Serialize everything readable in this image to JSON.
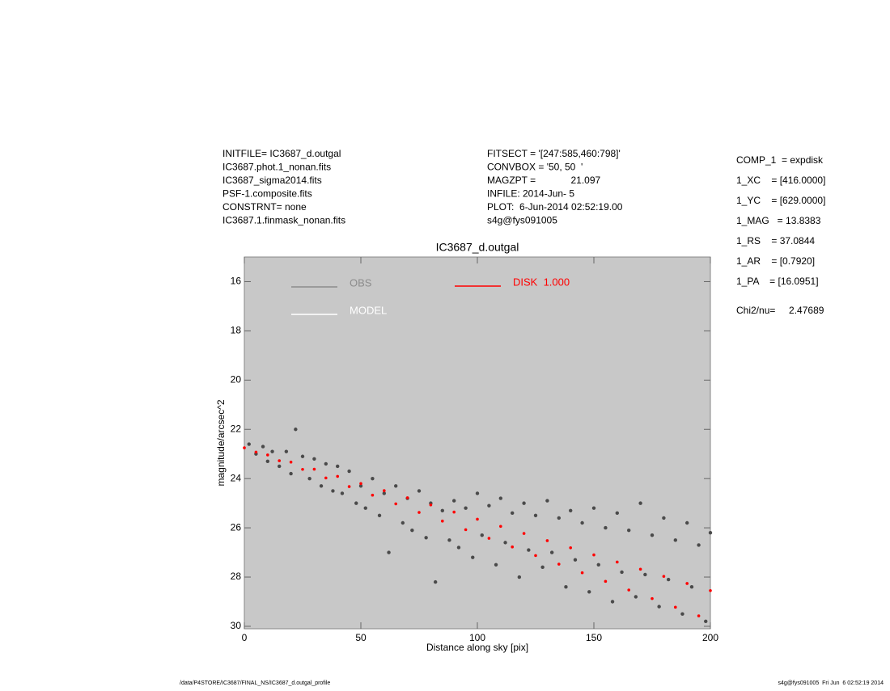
{
  "chart_data": {
    "type": "scatter",
    "title": "IC3687_d.outgal",
    "xlabel": "Distance along sky [pix]",
    "ylabel": "magnitude/arcsec^2",
    "xlim": [
      0,
      200
    ],
    "ylim": [
      30.1,
      15
    ],
    "xticks": [
      0,
      50,
      100,
      150,
      200
    ],
    "yticks": [
      16,
      18,
      20,
      22,
      24,
      26,
      28,
      30
    ],
    "background": "#c8c8c8",
    "header_left": [
      "INITFILE= IC3687_d.outgal",
      "IC3687.phot.1_nonan.fits",
      "IC3687_sigma2014.fits",
      "PSF-1.composite.fits",
      "CONSTRNT= none",
      "IC3687.1.finmask_nonan.fits"
    ],
    "header_middle": [
      "FITSECT = '[247:585,460:798]'",
      "CONVBOX = '50, 50  '",
      "MAGZPT =             21.097",
      "INFILE: 2014-Jun- 5",
      "PLOT:  6-Jun-2014 02:52:19.00",
      "s4g@fys091005"
    ],
    "header_right": [
      "COMP_1  = expdisk",
      "1_XC    = [416.0000]",
      "1_YC    = [629.0000]",
      "1_MAG   = 13.8383",
      "1_RS    = 37.0844",
      "1_AR    = [0.7920]",
      "1_PA    = [16.0951]"
    ],
    "chi2": "Chi2/nu=     2.47689",
    "footer_left": "/data/P4STORE/IC3687/FINAL_NS/IC3687_d.outgal_profile",
    "footer_right": "s4g@fys091005  Fri Jun  6 02:52:19 2014",
    "series": [
      {
        "name": "OBS",
        "color": "#4a4a4a",
        "legend_color": "#8c8c8c",
        "x": [
          2,
          5,
          8,
          10,
          12,
          15,
          18,
          20,
          22,
          25,
          28,
          30,
          33,
          35,
          38,
          40,
          42,
          45,
          48,
          50,
          52,
          55,
          58,
          60,
          62,
          65,
          68,
          70,
          72,
          75,
          78,
          80,
          82,
          85,
          88,
          90,
          92,
          95,
          98,
          100,
          102,
          105,
          108,
          110,
          112,
          115,
          118,
          120,
          122,
          125,
          128,
          130,
          132,
          135,
          138,
          140,
          142,
          145,
          148,
          150,
          152,
          155,
          158,
          160,
          162,
          165,
          168,
          170,
          172,
          175,
          178,
          180,
          182,
          185,
          188,
          190,
          192,
          195,
          198,
          200
        ],
        "values": [
          22.6,
          23.0,
          22.7,
          23.3,
          22.9,
          23.5,
          22.9,
          23.8,
          22.0,
          23.1,
          24.0,
          23.2,
          24.3,
          23.4,
          24.5,
          23.5,
          24.6,
          23.7,
          25.0,
          24.3,
          25.2,
          24.0,
          25.5,
          24.6,
          27.0,
          24.3,
          25.8,
          24.8,
          26.1,
          24.5,
          26.4,
          25.0,
          28.2,
          25.3,
          26.5,
          24.9,
          26.8,
          25.2,
          27.2,
          24.6,
          26.3,
          25.1,
          27.5,
          24.8,
          26.6,
          25.4,
          28.0,
          25.0,
          26.9,
          25.5,
          27.6,
          24.9,
          27.0,
          25.6,
          28.4,
          25.3,
          27.3,
          25.8,
          28.6,
          25.2,
          27.5,
          26.0,
          29.0,
          25.4,
          27.8,
          26.1,
          28.8,
          25.0,
          27.9,
          26.3,
          29.2,
          25.6,
          28.1,
          26.5,
          29.5,
          25.8,
          28.4,
          26.7,
          29.8,
          26.2
        ]
      },
      {
        "name": "MODEL",
        "color": "#ffffff",
        "x": [],
        "values": []
      },
      {
        "name": "DISK  1.000",
        "color": "#ff0000",
        "x": [
          0,
          5,
          10,
          15,
          20,
          25,
          30,
          35,
          40,
          45,
          50,
          55,
          60,
          65,
          70,
          75,
          80,
          85,
          90,
          95,
          100,
          105,
          110,
          115,
          120,
          125,
          130,
          135,
          140,
          145,
          150,
          155,
          160,
          165,
          170,
          175,
          180,
          185,
          190,
          195,
          200
        ],
        "values": [
          22.75,
          22.925,
          23.04,
          23.275,
          23.33,
          23.625,
          23.62,
          23.975,
          23.91,
          24.325,
          24.2,
          24.675,
          24.49,
          25.025,
          24.78,
          25.375,
          25.07,
          25.725,
          25.36,
          26.075,
          25.65,
          26.425,
          25.94,
          26.775,
          26.23,
          27.125,
          26.52,
          27.475,
          26.81,
          27.825,
          27.1,
          28.175,
          27.39,
          28.525,
          27.68,
          28.875,
          27.97,
          29.225,
          28.26,
          29.575,
          28.55
        ]
      }
    ]
  }
}
